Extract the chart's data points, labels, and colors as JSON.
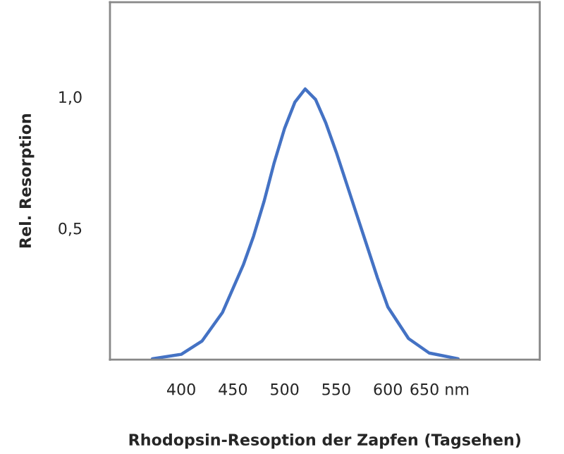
{
  "chart_data": {
    "type": "line",
    "xlabel": "Rhodopsin-Resoption der Zapfen (Tagsehen)",
    "ylabel": "Rel. Resorption",
    "x": [
      372,
      400,
      420,
      440,
      460,
      470,
      480,
      490,
      500,
      510,
      520,
      530,
      540,
      550,
      560,
      570,
      580,
      590,
      600,
      620,
      640,
      668
    ],
    "series": [
      {
        "color": "#4472c4",
        "values": [
          0.003,
          0.02,
          0.07,
          0.18,
          0.36,
          0.47,
          0.6,
          0.75,
          0.88,
          0.98,
          1.03,
          0.99,
          0.9,
          0.79,
          0.67,
          0.55,
          0.43,
          0.31,
          0.2,
          0.08,
          0.025,
          0.003
        ]
      }
    ],
    "xlim": [
      331,
      747
    ],
    "ylim": [
      0,
      1.36
    ],
    "xticks": [
      400,
      450,
      500,
      550,
      600,
      {
        "value": 650,
        "label": "650 nm"
      }
    ],
    "yticks": [
      {
        "value": 0.5,
        "label": "0,5"
      },
      {
        "value": 1.0,
        "label": "1,0"
      }
    ],
    "grid": false,
    "legend": false,
    "marker": "none",
    "line_style": "solid"
  }
}
